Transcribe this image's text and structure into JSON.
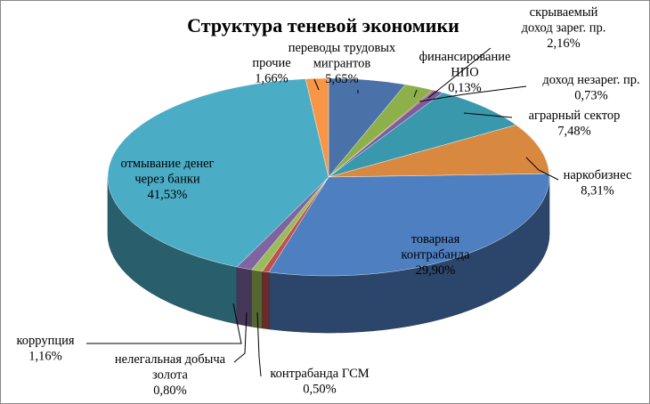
{
  "chart_data": {
    "type": "pie",
    "title": "Структура теневой экономики",
    "slices": [
      {
        "label": [
          "переводы трудовых",
          "мигрантов"
        ],
        "value_text": "5,65%",
        "value": 5.65,
        "color": "#4a71a8"
      },
      {
        "label": [
          "скрываемый",
          "доход зарег. пр."
        ],
        "value_text": "2,16%",
        "value": 2.16,
        "color": "#8db04a"
      },
      {
        "label": [
          "финансирование",
          "НПО"
        ],
        "value_text": "0,13%",
        "value": 0.13,
        "color": "#b9534f"
      },
      {
        "label": [
          "доход незарег. пр."
        ],
        "value_text": "0,73%",
        "value": 0.73,
        "color": "#7c5d9e"
      },
      {
        "label": [
          "аграрный сектор"
        ],
        "value_text": "7,48%",
        "value": 7.48,
        "color": "#3a98ad"
      },
      {
        "label": [
          "наркобизнес"
        ],
        "value_text": "8,31%",
        "value": 8.31,
        "color": "#d98840"
      },
      {
        "label": [
          "товарная",
          "контрабанда"
        ],
        "value_text": "29,90%",
        "value": 29.9,
        "color": "#4e7fc1"
      },
      {
        "label": [
          "контрабанда ГСМ"
        ],
        "value_text": "0,50%",
        "value": 0.5,
        "color": "#c0504d"
      },
      {
        "label": [
          "нелегальная добыча",
          "золота"
        ],
        "value_text": "0,80%",
        "value": 0.8,
        "color": "#9bbb59"
      },
      {
        "label": [
          "коррупция"
        ],
        "value_text": "1,16%",
        "value": 1.16,
        "color": "#8064a2"
      },
      {
        "label": [
          "отмывание денег",
          "через банки"
        ],
        "value_text": "41,53%",
        "value": 41.53,
        "color": "#4bacc6"
      },
      {
        "label": [
          "прочие"
        ],
        "value_text": "1,66%",
        "value": 1.66,
        "color": "#f79646"
      }
    ]
  }
}
